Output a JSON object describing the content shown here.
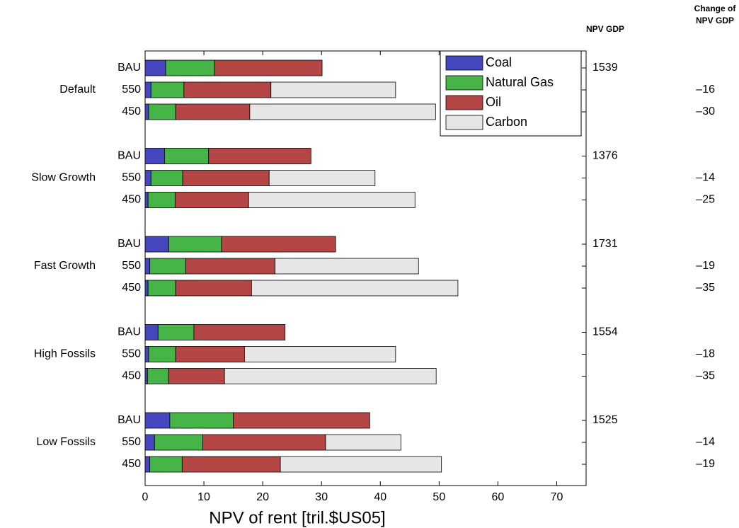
{
  "chart_data": {
    "type": "stacked-bar-horizontal",
    "x_label": "NPV of rent [tril.$US05]",
    "groups": [
      "Default",
      "Slow Growth",
      "Fast Growth",
      "High Fossils",
      "Low Fossils"
    ],
    "categories": [
      "BAU",
      "550",
      "450",
      "BAU",
      "550",
      "450",
      "BAU",
      "550",
      "450",
      "BAU",
      "550",
      "450",
      "BAU",
      "550",
      "450"
    ],
    "series": [
      {
        "name": "Coal",
        "color": "#4646be",
        "values": [
          3.5,
          1.0,
          0.6,
          3.3,
          1.0,
          0.5,
          4.0,
          0.8,
          0.5,
          2.2,
          0.6,
          0.4,
          4.2,
          1.6,
          0.8
        ]
      },
      {
        "name": "Natural Gas",
        "color": "#46b446",
        "values": [
          8.3,
          5.6,
          4.6,
          7.5,
          5.4,
          4.6,
          9.0,
          6.1,
          4.7,
          6.1,
          4.6,
          3.6,
          10.8,
          8.2,
          5.5
        ]
      },
      {
        "name": "Oil",
        "color": "#b44646",
        "values": [
          18.3,
          14.8,
          12.6,
          17.4,
          14.7,
          12.5,
          19.4,
          15.2,
          12.9,
          15.5,
          11.7,
          9.5,
          23.2,
          20.9,
          16.7
        ]
      },
      {
        "name": "Carbon",
        "color": "#e6e6e6",
        "values": [
          null,
          21.2,
          31.6,
          null,
          18.0,
          28.3,
          null,
          24.4,
          35.1,
          null,
          25.7,
          36.0,
          null,
          12.8,
          27.4
        ]
      }
    ],
    "xlim": [
      0,
      75
    ],
    "xticks": [
      0,
      10,
      20,
      30,
      40,
      50,
      60,
      70
    ],
    "legend": "upper right",
    "npv_gdp": {
      "title": "NPV GDP",
      "values": [
        1539,
        null,
        null,
        1376,
        null,
        null,
        1731,
        null,
        null,
        1554,
        null,
        null,
        1525,
        null,
        null
      ]
    },
    "change_npv_gdp": {
      "title": [
        "Change of",
        "NPV GDP"
      ],
      "values": [
        null,
        -16,
        -30,
        null,
        -14,
        -25,
        null,
        -19,
        -35,
        null,
        -18,
        -35,
        null,
        -14,
        -19
      ],
      "value_labels": [
        null,
        "–16",
        "–30",
        null,
        "–14",
        "–25",
        null,
        "–19",
        "–35",
        null,
        "–18",
        "–35",
        null,
        "–14",
        "–19"
      ]
    }
  }
}
